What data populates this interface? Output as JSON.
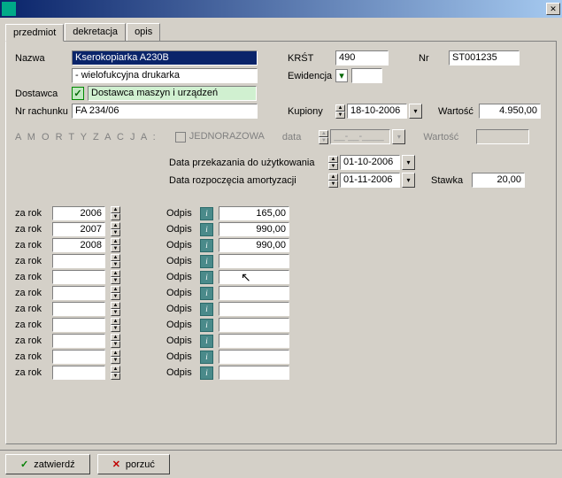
{
  "window": {
    "close": "✕"
  },
  "tabs": {
    "t0": "przedmiot",
    "t1": "dekretacja",
    "t2": "opis"
  },
  "labels": {
    "nazwa": "Nazwa",
    "dostawca": "Dostawca",
    "nrrach": "Nr rachunku",
    "krst": "KRŚT",
    "ewid": "Ewidencja",
    "nr": "Nr",
    "kupiony": "Kupiony",
    "wartosc": "Wartość",
    "amort": "A M O R T Y Z A C J A :",
    "jednoraz": "JEDNORAZOWA",
    "data": "data",
    "przekaz": "Data przekazania do użytkowania",
    "rozpocz": "Data rozpoczęcia amortyzacji",
    "stawka": "Stawka",
    "zarok": "za rok",
    "odpis": "Odpis"
  },
  "fields": {
    "nazwa1": "Kserokopiarka A230B",
    "nazwa2": "- wielofukcyjna drukarka",
    "dostawca": "Dostawca maszyn i urządzeń",
    "nrrach": "FA 234/06",
    "krst": "490",
    "ewid": "",
    "nr": "ST001235",
    "kupiony": "18-10-2006",
    "wartosc": "4.950,00",
    "amort_data": "__-__-____",
    "amort_wart": "",
    "przekaz_data": "01-10-2006",
    "rozpocz_data": "01-11-2006",
    "stawka": "20,00"
  },
  "years": [
    {
      "year": "2006",
      "odpis": "165,00"
    },
    {
      "year": "2007",
      "odpis": "990,00"
    },
    {
      "year": "2008",
      "odpis": "990,00"
    },
    {
      "year": "",
      "odpis": ""
    },
    {
      "year": "",
      "odpis": ""
    },
    {
      "year": "",
      "odpis": ""
    },
    {
      "year": "",
      "odpis": ""
    },
    {
      "year": "",
      "odpis": ""
    },
    {
      "year": "",
      "odpis": ""
    },
    {
      "year": "",
      "odpis": ""
    },
    {
      "year": "",
      "odpis": ""
    }
  ],
  "buttons": {
    "zatwierdz": "zatwierdź",
    "porzuc": "porzuć"
  },
  "colors": {
    "bg": "#d4d0c8",
    "title_from": "#0a246a",
    "title_to": "#a6caf0",
    "sel_bg": "#0a246a",
    "sel_fg": "#ffffff",
    "border_dark": "#808080",
    "border_light": "#ffffff",
    "info_bg": "#4a8a8a",
    "green": "#008000",
    "red": "#c00000",
    "supplier_bg": "#c0e8c0"
  }
}
